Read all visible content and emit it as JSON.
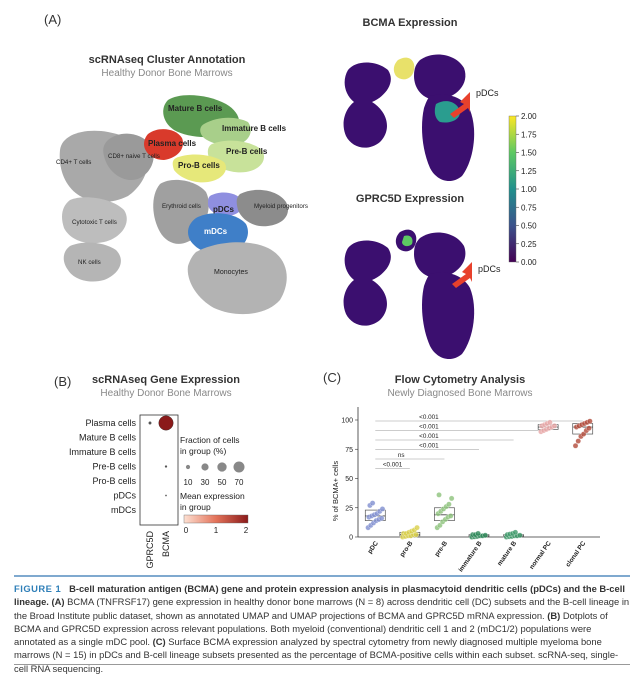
{
  "panelA": {
    "letter": "(A)",
    "umap_title": "scRNAseq Cluster Annotation",
    "umap_subtitle": "Healthy Donor Bone Marrows",
    "clusters": [
      {
        "label": "Mature B cells",
        "color": "#5b9a52"
      },
      {
        "label": "Immature B cells",
        "color": "#a8cf8a"
      },
      {
        "label": "Plasma cells",
        "color": "#d93a2b"
      },
      {
        "label": "Pre-B cells",
        "color": "#c8e29a"
      },
      {
        "label": "Pro-B cells",
        "color": "#e6e87a"
      },
      {
        "label": "CD4+ T cells",
        "color": "#a9a9a9"
      },
      {
        "label": "CD8+ naive T cells",
        "color": "#9a9a9a"
      },
      {
        "label": "Erythroid cells",
        "color": "#a0a0a0"
      },
      {
        "label": "pDCs",
        "color": "#8f8fe0"
      },
      {
        "label": "Myeloid progenitors",
        "color": "#8c8c8c"
      },
      {
        "label": "mDCs",
        "color": "#3f7fc8"
      },
      {
        "label": "Cytotoxic T cells",
        "color": "#bdbdbd"
      },
      {
        "label": "NK cells",
        "color": "#b5b5b5"
      },
      {
        "label": "Monocytes",
        "color": "#b3b3b3"
      }
    ],
    "bcma_title": "BCMA Expression",
    "gprc5d_title": "GPRC5D Expression",
    "pdc_arrow_label": "pDCs",
    "colorbar_ticks": [
      "2.00",
      "1.75",
      "1.50",
      "1.25",
      "1.00",
      "0.75",
      "0.50",
      "0.25",
      "0.00"
    ],
    "arrow_color": "#e8412c",
    "umap_fill": "#3b0f6f"
  },
  "panelB": {
    "letter": "(B)",
    "title": "scRNAseq Gene Expression",
    "subtitle": "Healthy Donor Bone Marrows",
    "rows": [
      "Plasma cells",
      "Mature B cells",
      "Immature B cells",
      "Pre-B cells",
      "Pro-B cells",
      "pDCs",
      "mDCs"
    ],
    "columns": [
      "GPRC5D",
      "BCMA"
    ],
    "dots": [
      {
        "row": 0,
        "col": 0,
        "fraction": 3,
        "expr": 0.3
      },
      {
        "row": 0,
        "col": 1,
        "fraction": 75,
        "expr": 2.0
      },
      {
        "row": 3,
        "col": 1,
        "fraction": 2,
        "expr": 0.2
      },
      {
        "row": 5,
        "col": 1,
        "fraction": 1,
        "expr": 0.1
      }
    ],
    "size_legend_title": "Fraction of cells in group (%)",
    "size_legend_values": [
      "10",
      "30",
      "50",
      "70"
    ],
    "color_legend_title": "Mean expression in group",
    "color_legend_ticks": [
      "0",
      "1",
      "2"
    ]
  },
  "panelC": {
    "letter": "(C)",
    "chart_data": {
      "type": "box",
      "title": "Flow Cytometry Analysis",
      "subtitle": "Newly Diagnosed Bone Marrows",
      "ylabel": "% of BCMA+ cells",
      "ylim": [
        0,
        100
      ],
      "yticks": [
        "0",
        "25",
        "50",
        "75",
        "100"
      ],
      "categories": [
        "pDC",
        "pro-B",
        "pre-B",
        "immature B",
        "mature B",
        "normal PC",
        "clonal PC"
      ],
      "colors": [
        "#7f8fd0",
        "#d9d04a",
        "#8cc27a",
        "#2e8a5a",
        "#3f9a6a",
        "#e7a6a6",
        "#b14a3a"
      ],
      "boxes": [
        {
          "q1": 14,
          "median": 18,
          "q3": 23,
          "points": [
            8,
            10,
            12,
            14,
            15,
            16,
            17,
            18,
            19,
            20,
            22,
            24,
            27,
            29
          ]
        },
        {
          "q1": 1,
          "median": 2,
          "q3": 4,
          "points": [
            0,
            0.5,
            1,
            1,
            2,
            2,
            3,
            3,
            4,
            5,
            6,
            8
          ]
        },
        {
          "q1": 14,
          "median": 19,
          "q3": 25,
          "points": [
            8,
            10,
            13,
            15,
            17,
            18,
            20,
            22,
            24,
            26,
            28,
            33,
            36
          ]
        },
        {
          "q1": 0.5,
          "median": 1,
          "q3": 2,
          "points": [
            0,
            0.2,
            0.5,
            1,
            1,
            1.5,
            2,
            2,
            3
          ]
        },
        {
          "q1": 0.5,
          "median": 1,
          "q3": 2,
          "points": [
            0,
            0.3,
            0.5,
            1,
            1,
            1.5,
            2,
            2.5,
            3,
            4
          ]
        },
        {
          "q1": 92,
          "median": 94,
          "q3": 96,
          "points": [
            90,
            91,
            92,
            93,
            94,
            95,
            95,
            96,
            97,
            98
          ]
        },
        {
          "q1": 88,
          "median": 94,
          "q3": 97,
          "points": [
            78,
            82,
            86,
            88,
            91,
            93,
            94,
            95,
            96,
            97,
            98,
            99
          ]
        }
      ],
      "significance": [
        {
          "from": 0,
          "to": 6,
          "label": "<0.001"
        },
        {
          "from": 0,
          "to": 5,
          "label": "<0.001"
        },
        {
          "from": 0,
          "to": 4,
          "label": "<0.001"
        },
        {
          "from": 0,
          "to": 3,
          "label": "<0.001"
        },
        {
          "from": 0,
          "to": 2,
          "label": "ns"
        },
        {
          "from": 0,
          "to": 1,
          "label": "<0.001"
        }
      ]
    }
  },
  "caption": {
    "fig": "FIGURE 1",
    "lead": "B-cell maturation antigen (BCMA) gene and protein expression analysis in plasmacytoid dendritic cells (pDCs) and the B-cell lineage.",
    "A_label": "(A)",
    "A_text": "BCMA (TNFRSF17) gene expression in healthy donor bone marrows (N = 8) across dendritic cell (DC) subsets and the B-cell lineage in the Broad Institute public dataset, shown as annotated UMAP and UMAP projections of BCMA and GPRC5D mRNA expression.",
    "B_label": "(B)",
    "B_text": "Dotplots of BCMA and GPRC5D expression across relevant populations. Both myeloid (conventional) dendritic cell 1 and 2 (mDC1/2) populations were annotated as a single mDC pool.",
    "C_label": "(C)",
    "C_text": "Surface BCMA expression analyzed by spectral cytometry from newly diagnosed multiple myeloma bone marrows (N = 15) in pDCs and B-cell lineage subsets presented as the percentage of BCMA-positive cells within each subset. scRNA-seq, single-cell RNA sequencing."
  }
}
